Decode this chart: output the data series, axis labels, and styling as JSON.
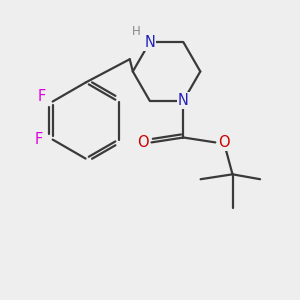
{
  "bg_color": "#eeeeee",
  "bond_color": "#3a3a3a",
  "bond_lw": 1.6,
  "atom_colors": {
    "F": "#dd00dd",
    "N": "#2222bb",
    "O": "#cc0000",
    "H": "#888888"
  },
  "font_size_atom": 10.5,
  "font_size_H": 8.5,
  "xlim": [
    -2.2,
    2.6
  ],
  "ylim": [
    -2.4,
    1.8
  ]
}
